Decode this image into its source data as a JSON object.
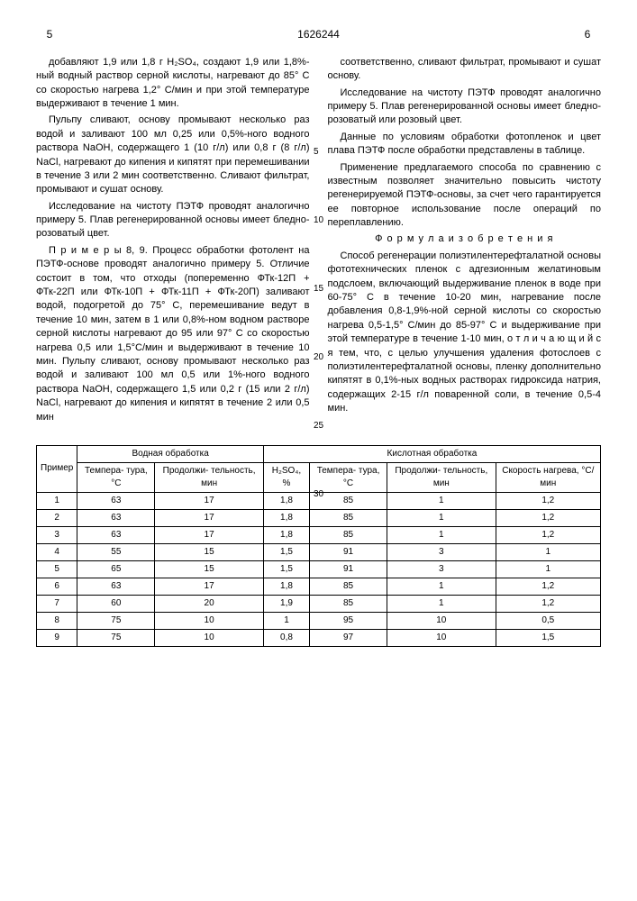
{
  "doc_number": "1626244",
  "col_num_left": "5",
  "col_num_right": "6",
  "left_col": {
    "p1": "добавляют 1,9 или 1,8 г H₂SO₄, создают 1,9 или 1,8%-ный водный раствор серной кислоты, нагревают до 85° С со скоростью нагрева 1,2° С/мин и при этой температуре выдерживают в течение 1 мин.",
    "p2": "Пульпу сливают, основу промывают несколько раз водой и заливают 100 мл 0,25 или 0,5%-ного водного раствора NaOH, содержащего 1 (10 г/л) или 0,8 г (8 г/л) NaCl, нагревают до кипения и кипятят при перемешивании в течение 3 или 2 мин соответственно. Сливают фильтрат, промывают и сушат основу.",
    "p3": "Исследование на чистоту ПЭТФ проводят аналогично примеру 5. Плав регенерированной основы имеет бледно-розоватый цвет.",
    "p4": "П р и м е р ы  8, 9. Процесс обработки фотолент на ПЭТФ-основе проводят аналогично примеру 5. Отличие состоит в том, что отходы (попеременно ФТк-12П + ФТк-22П или ФТк-10П + ФТк-11П + ФТк-20П) заливают водой, подогретой до 75° С, перемешивание ведут в течение 10 мин, затем в 1 или 0,8%-ном водном растворе серной кислоты нагревают до 95 или 97° С со скоростью нагрева 0,5 или 1,5°С/мин и выдерживают в течение 10 мин. Пульпу сливают, основу промывают несколько раз водой и заливают 100 мл 0,5 или 1%-ного водного раствора NaOH, содержащего 1,5 или 0,2 г (15 или 2 г/л) NaCl, нагревают до кипения и кипятят в течение 2 или 0,5 мин"
  },
  "right_col": {
    "p1": "соответственно, сливают фильтрат, промывают и сушат основу.",
    "p2": "Исследование на чистоту ПЭТФ проводят аналогично примеру 5. Плав регенерированной основы имеет бледно-розоватый или розовый цвет.",
    "p3": "Данные по условиям обработки фотопленок и цвет плава ПЭТФ после обработки представлены в таблице.",
    "p4": "Применение предлагаемого способа по сравнению с известным позволяет значительно повысить чистоту регенерируемой ПЭТФ-основы, за счет чего гарантируется ее повторное использование после операций по переплавлению.",
    "formula_title": "Ф о р м у л а  и з о б р е т е н и я",
    "p5": "Способ регенерации полиэтилентерефталатной основы фототехнических пленок с адгезионным желатиновым подслоем, включающий выдерживание пленок в воде при 60-75° С в течение 10-20 мин, нагревание после добавления 0,8-1,9%-ной серной кислоты со скоростью нагрева 0,5-1,5° С/мин до 85-97° С и выдерживание при этой температуре в течение 1-10 мин, о т л и ч а ю щ и й с я тем, что, с целью улучшения удаления фотослоев с полиэтилентерефталатной основы, пленку дополнительно кипятят в 0,1%-ных водных растворах гидроксида натрия, содержащих 2-15 г/л поваренной соли, в течение 0,5-4 мин."
  },
  "line_markers": [
    "5",
    "10",
    "15",
    "20",
    "25",
    "30"
  ],
  "table": {
    "headers": {
      "col1": "Пример",
      "group1": "Водная обработка",
      "group2": "Кислотная обработка",
      "temp": "Темпера-\nтура, °С",
      "duration": "Продолжи-\nтельность,\nмин",
      "h2so4": "H₂SO₄, %",
      "speed": "Скорость\nнагрева,\n°С/мин"
    },
    "rows": [
      [
        "1",
        "63",
        "17",
        "1,8",
        "85",
        "1",
        "1,2"
      ],
      [
        "2",
        "63",
        "17",
        "1,8",
        "85",
        "1",
        "1,2"
      ],
      [
        "3",
        "63",
        "17",
        "1,8",
        "85",
        "1",
        "1,2"
      ],
      [
        "4",
        "55",
        "15",
        "1,5",
        "91",
        "3",
        "1"
      ],
      [
        "5",
        "65",
        "15",
        "1,5",
        "91",
        "3",
        "1"
      ],
      [
        "6",
        "63",
        "17",
        "1,8",
        "85",
        "1",
        "1,2"
      ],
      [
        "7",
        "60",
        "20",
        "1,9",
        "85",
        "1",
        "1,2"
      ],
      [
        "8",
        "75",
        "10",
        "1",
        "95",
        "10",
        "0,5"
      ],
      [
        "9",
        "75",
        "10",
        "0,8",
        "97",
        "10",
        "1,5"
      ]
    ]
  }
}
